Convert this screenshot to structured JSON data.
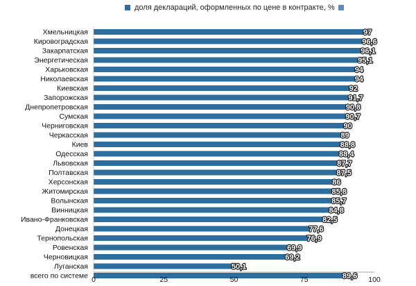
{
  "legend": {
    "series_label": "доля деклараций, оформленных по цене в контракте, %",
    "color": "#2e6e9e",
    "second_color": "#5b8db8"
  },
  "chart_data": {
    "type": "bar",
    "orientation": "horizontal",
    "series": [
      {
        "name": "доля деклараций, оформленных по цене в контракте, %",
        "color": "#2e6e9e"
      }
    ],
    "categories": [
      "Хмельницкая",
      "Кировоградская",
      "Закарпатская",
      "Энергетическая",
      "Харьковская",
      "Николаевская",
      "Киевская",
      "Запорожская",
      "Днепропетровская",
      "Сумская",
      "Черниговская",
      "Черкасская",
      "Киев",
      "Одесская",
      "Львовская",
      "Полтавская",
      "Херсонская",
      "Житомирская",
      "Волынская",
      "Винницкая",
      "Ивано-Франковская",
      "Донецкая",
      "Тернопольская",
      "Ровенская",
      "Черновицкая",
      "Луганская",
      "всего по системе"
    ],
    "values": [
      97,
      96.6,
      96.1,
      95.1,
      94,
      94,
      92,
      91.7,
      90.8,
      90.7,
      90,
      89,
      88.8,
      88.4,
      87.7,
      87.5,
      86,
      85.8,
      85.7,
      84.8,
      82.5,
      77.6,
      76.9,
      69.9,
      69.2,
      50.1,
      89.6
    ],
    "value_labels": [
      "97",
      "96,6",
      "96,1",
      "95,1",
      "94",
      "94",
      "92",
      "91,7",
      "90,8",
      "90,7",
      "90",
      "89",
      "88,8",
      "88,4",
      "87,7",
      "87,5",
      "86",
      "85,8",
      "85,7",
      "84,8",
      "82,5",
      "77,6",
      "76,9",
      "69,9",
      "69,2",
      "50,1",
      "89,6"
    ],
    "xlim": [
      0,
      100
    ],
    "xticks": [
      0,
      25,
      50,
      75,
      100
    ],
    "xtick_labels": [
      "0",
      "25",
      "50",
      "75",
      "100"
    ],
    "grid": false,
    "legend_position": "top"
  }
}
